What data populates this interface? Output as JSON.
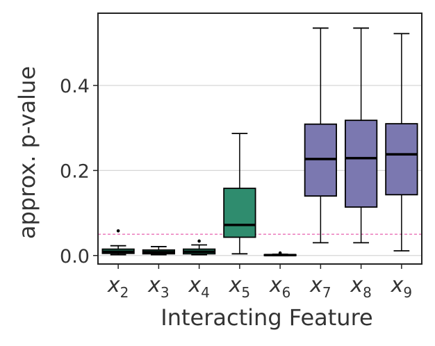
{
  "chart_data": {
    "type": "box",
    "xlabel": "Interacting Feature",
    "ylabel": "approx. p-value",
    "ylim": [
      -0.02,
      0.57
    ],
    "yticks": [
      "0.0",
      "0.2",
      "0.4"
    ],
    "ytick_values": [
      0.0,
      0.2,
      0.4
    ],
    "grid": "horizontal",
    "reference_line": {
      "y": 0.05,
      "style": "dashed",
      "color": "#e0399a"
    },
    "categories": [
      {
        "var": "x",
        "sub": "2",
        "label": "x2",
        "color": "#2c8a6a",
        "min": 0.002,
        "q1": 0.005,
        "median": 0.009,
        "q3": 0.015,
        "max": 0.023,
        "outliers": [
          0.058
        ]
      },
      {
        "var": "x",
        "sub": "3",
        "label": "x3",
        "color": "#2c8a6a",
        "min": 0.002,
        "q1": 0.004,
        "median": 0.008,
        "q3": 0.013,
        "max": 0.021,
        "outliers": []
      },
      {
        "var": "x",
        "sub": "4",
        "label": "x4",
        "color": "#2c8a6a",
        "min": 0.002,
        "q1": 0.004,
        "median": 0.009,
        "q3": 0.015,
        "max": 0.025,
        "outliers": [
          0.034
        ]
      },
      {
        "var": "x",
        "sub": "5",
        "label": "x5",
        "color": "#2f8c6e",
        "min": 0.004,
        "q1": 0.043,
        "median": 0.072,
        "q3": 0.158,
        "max": 0.287,
        "outliers": []
      },
      {
        "var": "x",
        "sub": "6",
        "label": "x6",
        "color": "#2c8a6a",
        "min": 0.0,
        "q1": 0.0,
        "median": 0.001,
        "q3": 0.002,
        "max": 0.003,
        "outliers": [
          0.006
        ]
      },
      {
        "var": "x",
        "sub": "7",
        "label": "x7",
        "color": "#7b78b0",
        "min": 0.03,
        "q1": 0.14,
        "median": 0.227,
        "q3": 0.309,
        "max": 0.535,
        "outliers": []
      },
      {
        "var": "x",
        "sub": "8",
        "label": "x8",
        "color": "#7b78b0",
        "min": 0.03,
        "q1": 0.114,
        "median": 0.229,
        "q3": 0.318,
        "max": 0.535,
        "outliers": []
      },
      {
        "var": "x",
        "sub": "9",
        "label": "x9",
        "color": "#7b78b0",
        "min": 0.011,
        "q1": 0.143,
        "median": 0.238,
        "q3": 0.31,
        "max": 0.522,
        "outliers": []
      }
    ]
  }
}
